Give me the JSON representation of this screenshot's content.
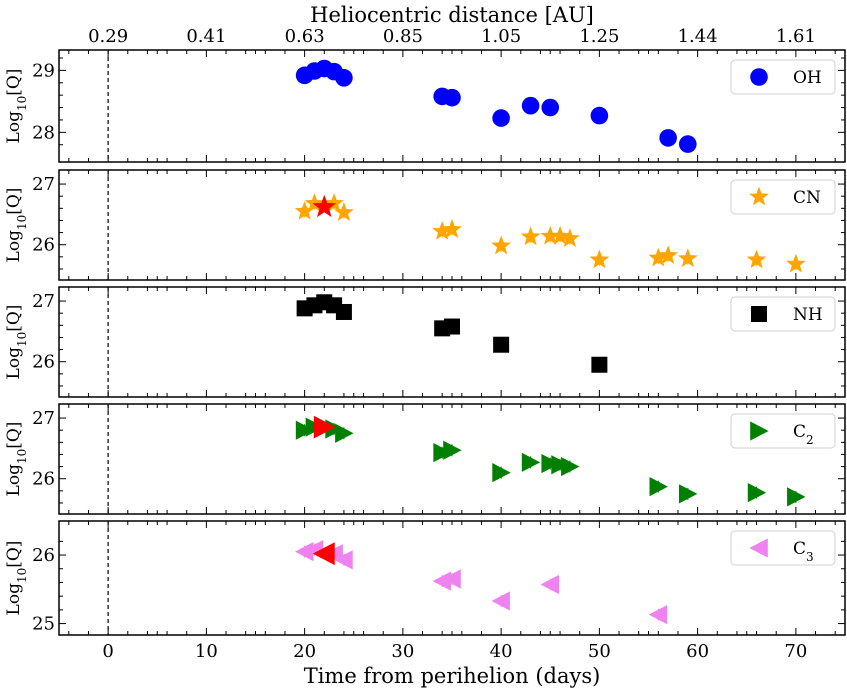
{
  "chart_data": {
    "type": "scatter",
    "xlabel": "Time from perihelion (days)",
    "top_axis_label": "Heliocentric distance [AU]",
    "xlim": [
      -5,
      75
    ],
    "x_ticks": [
      0,
      10,
      20,
      30,
      40,
      50,
      60,
      70
    ],
    "x_tick_labels": [
      "0",
      "10",
      "20",
      "30",
      "40",
      "50",
      "60",
      "70"
    ],
    "top_ticks": [
      0,
      10,
      20,
      30,
      40,
      50,
      60,
      70
    ],
    "top_tick_labels": [
      "0.29",
      "0.41",
      "0.63",
      "0.85",
      "1.05",
      "1.25",
      "1.44",
      "1.61"
    ],
    "perihelion_line_x": 0,
    "ylabel_prefix": "Log",
    "ylabel_sub": "10",
    "ylabel_suffix": "[Q]",
    "panels": [
      {
        "species": "OH",
        "label_main": "OH",
        "label_sub": "",
        "marker": "circle",
        "color": "#0000ff",
        "ylim": [
          27.65,
          29.2
        ],
        "yticks": [
          28,
          29
        ],
        "x": [
          20,
          21,
          22,
          23,
          24,
          34,
          35,
          40,
          43,
          45,
          50,
          57,
          59
        ],
        "y": [
          28.92,
          28.99,
          29.03,
          28.98,
          28.88,
          28.58,
          28.56,
          28.23,
          28.43,
          28.4,
          28.27,
          27.91,
          27.81
        ],
        "highlight_x": [],
        "highlight_y": []
      },
      {
        "species": "CN",
        "label_main": "CN",
        "label_sub": "",
        "marker": "star",
        "color": "#ffa500",
        "ylim": [
          25.55,
          27.1
        ],
        "yticks": [
          26,
          27
        ],
        "x": [
          20,
          21,
          23,
          24,
          34,
          35,
          40,
          43,
          45,
          46,
          47,
          50,
          56,
          57,
          59,
          66,
          70
        ],
        "y": [
          26.55,
          26.68,
          26.68,
          26.53,
          26.22,
          26.25,
          25.98,
          26.13,
          26.14,
          26.14,
          26.1,
          25.75,
          25.78,
          25.82,
          25.77,
          25.75,
          25.68
        ],
        "highlight_x": [
          22
        ],
        "highlight_y": [
          26.62
        ]
      },
      {
        "species": "NH",
        "label_main": "NH",
        "label_sub": "",
        "marker": "square",
        "color": "#000000",
        "ylim": [
          25.55,
          27.1
        ],
        "yticks": [
          26,
          27
        ],
        "x": [
          20,
          21,
          22,
          23,
          24,
          34,
          35,
          40,
          50
        ],
        "y": [
          26.88,
          26.93,
          26.98,
          26.93,
          26.82,
          26.55,
          26.58,
          26.28,
          25.95
        ],
        "highlight_x": [],
        "highlight_y": []
      },
      {
        "species": "C2",
        "label_main": "C",
        "label_sub": "2",
        "marker": "triangle-right",
        "color": "#008000",
        "ylim": [
          25.55,
          27.1
        ],
        "yticks": [
          26,
          27
        ],
        "x": [
          20,
          21,
          23,
          24,
          34,
          35,
          40,
          43,
          45,
          46,
          47,
          56,
          59,
          66,
          70
        ],
        "y": [
          26.8,
          26.85,
          26.82,
          26.75,
          26.43,
          26.47,
          26.1,
          26.27,
          26.25,
          26.23,
          26.2,
          25.87,
          25.75,
          25.77,
          25.7
        ],
        "highlight_x": [
          22
        ],
        "highlight_y": [
          26.85
        ]
      },
      {
        "species": "C3",
        "label_main": "C",
        "label_sub": "3",
        "marker": "triangle-left",
        "color": "#ee82ee",
        "ylim": [
          24.95,
          26.38
        ],
        "yticks": [
          25,
          26
        ],
        "x": [
          20,
          21,
          23,
          24,
          34,
          35,
          40,
          45,
          56
        ],
        "y": [
          26.05,
          26.08,
          26.02,
          25.93,
          25.62,
          25.65,
          25.33,
          25.57,
          25.13
        ],
        "highlight_x": [
          22
        ],
        "highlight_y": [
          26.02
        ]
      }
    ],
    "highlight_color": "#ff0000"
  }
}
